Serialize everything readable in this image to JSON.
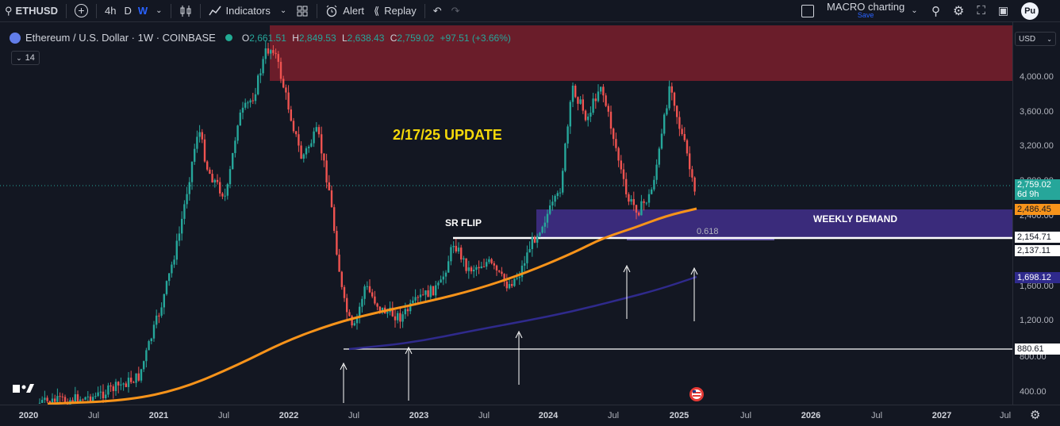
{
  "toolbar": {
    "symbol": "ETHUSD",
    "intervals": [
      "4h",
      "D",
      "W"
    ],
    "indicators_label": "Indicators",
    "alert_label": "Alert",
    "replay_label": "Replay",
    "layout_name": "MACRO charting",
    "layout_status": "Save",
    "publish_label": "Pu"
  },
  "header": {
    "title": "Ethereum / U.S. Dollar · 1W · COINBASE",
    "open_label": "O",
    "open": "2,661.51",
    "high_label": "H",
    "high": "2,849.53",
    "low_label": "L",
    "low": "2,638.43",
    "close_label": "C",
    "close": "2,759.02",
    "change": "+97.51 (+3.66%)",
    "indicator_count": "14"
  },
  "annotations": {
    "update": "2/17/25 UPDATE",
    "sr_flip": "SR FLIP",
    "weekly_demand": "WEEKLY DEMAND",
    "fib": "0.618"
  },
  "price_axis": {
    "currency": "USD",
    "labels": [
      "4,000.00",
      "3,600.00",
      "3,200.00",
      "2,800.00",
      "2,400.00",
      "1,600.00",
      "1,200.00",
      "800.00",
      "400.00"
    ],
    "tags": [
      {
        "price": "2,759.02",
        "sub": "6d 9h",
        "color": "#26a69a"
      },
      {
        "price": "2,486.45",
        "color": "#f7931a"
      },
      {
        "price": "2,154.71",
        "color": "#ffffff"
      },
      {
        "price": "2,137.11",
        "color": "#ffffff"
      },
      {
        "price": "1,698.12",
        "color": "#2f2a8c"
      },
      {
        "price": "880.61",
        "color": "#ffffff"
      }
    ]
  },
  "time_axis": {
    "labels": [
      "2020",
      "Jul",
      "2021",
      "Jul",
      "2022",
      "Jul",
      "2023",
      "Jul",
      "2024",
      "Jul",
      "2025",
      "Jul",
      "2026",
      "Jul",
      "2027",
      "Jul"
    ]
  },
  "colors": {
    "up": "#26a69a",
    "down": "#ef5350",
    "ma_fast": "#f7931a",
    "ma_slow": "#2f2a8c",
    "demand_zone": "#5b3cc4",
    "supply_zone": "#7a1f2b",
    "annotation_yellow": "#f5d90a"
  }
}
